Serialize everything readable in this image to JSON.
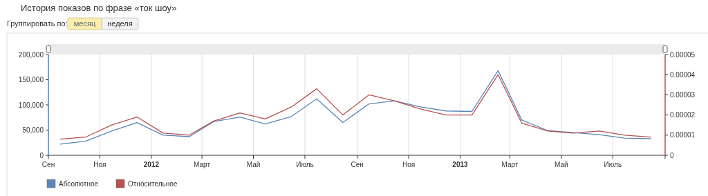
{
  "chart_data": {
    "type": "line",
    "title": "История показов по фразе «ток шоу»",
    "annotations": [
      "Группировать по:",
      "месяц",
      "неделя"
    ],
    "x": [
      "2011-09-15",
      "2011-10-15",
      "2011-11-15",
      "2011-12-15",
      "2012-01-15",
      "2012-02-15",
      "2012-03-15",
      "2012-04-15",
      "2012-05-15",
      "2012-06-15",
      "2012-07-15",
      "2012-08-15",
      "2012-09-15",
      "2012-10-15",
      "2012-11-15",
      "2012-12-15",
      "2013-01-15",
      "2013-02-15",
      "2013-03-15",
      "2013-04-15",
      "2013-05-15",
      "2013-06-15",
      "2013-07-15",
      "2013-08-15"
    ],
    "xlim": [
      "2011-09-01",
      "2013-09-01"
    ],
    "xticks": [
      {
        "value": "2011-09-01",
        "label": "Сен"
      },
      {
        "value": "2011-11-01",
        "label": "Ноя"
      },
      {
        "value": "2012-01-01",
        "label": "2012"
      },
      {
        "value": "2012-03-01",
        "label": "Март"
      },
      {
        "value": "2012-05-01",
        "label": "Май"
      },
      {
        "value": "2012-07-01",
        "label": "Июль"
      },
      {
        "value": "2012-09-01",
        "label": "Сен"
      },
      {
        "value": "2012-11-01",
        "label": "Ноя"
      },
      {
        "value": "2013-01-01",
        "label": "2013"
      },
      {
        "value": "2013-03-01",
        "label": "Март"
      },
      {
        "value": "2013-05-01",
        "label": "Май"
      },
      {
        "value": "2013-07-01",
        "label": "Июль"
      }
    ],
    "ylim": [
      0,
      200000
    ],
    "yticks": [
      0,
      {
        "value": 50000,
        "label": "50,000"
      },
      {
        "value": 100000,
        "label": "100,000"
      },
      {
        "value": 150000,
        "label": "150,000"
      },
      {
        "value": 200000,
        "label": "200,000"
      }
    ],
    "y2lim": [
      0,
      5e-05
    ],
    "y2ticks": [
      0,
      {
        "value": 1e-05,
        "label": "0.00001"
      },
      {
        "value": 2e-05,
        "label": "0.00002"
      },
      {
        "value": 3e-05,
        "label": "0.00003"
      },
      {
        "value": 4e-05,
        "label": "0.00004"
      },
      {
        "value": 5e-05,
        "label": "0.00005"
      }
    ],
    "grid": "x",
    "legend": "bottom left",
    "line_style": "solid",
    "marker": "none",
    "series": [
      {
        "name": "Абсолютное",
        "color": "#5b85b8",
        "values": [
          22000,
          28000,
          48000,
          65000,
          40000,
          37000,
          67000,
          76000,
          62000,
          77000,
          112000,
          65000,
          102000,
          108000,
          96000,
          88000,
          87000,
          168000,
          70000,
          49000,
          45000,
          41000,
          34000,
          33000
        ]
      },
      {
        "name": "Относительное",
        "color": "#b8504e",
        "axis": "y2",
        "values": [
          8e-06,
          9e-06,
          1.5e-05,
          1.9e-05,
          1.1e-05,
          1e-05,
          1.7e-05,
          2.1e-05,
          1.8e-05,
          2.4e-05,
          3.3e-05,
          2e-05,
          3e-05,
          2.7e-05,
          2.3e-05,
          2e-05,
          2e-05,
          4e-05,
          1.6e-05,
          1.2e-05,
          1.1e-05,
          1.2e-05,
          1e-05,
          9e-06
        ]
      }
    ]
  }
}
